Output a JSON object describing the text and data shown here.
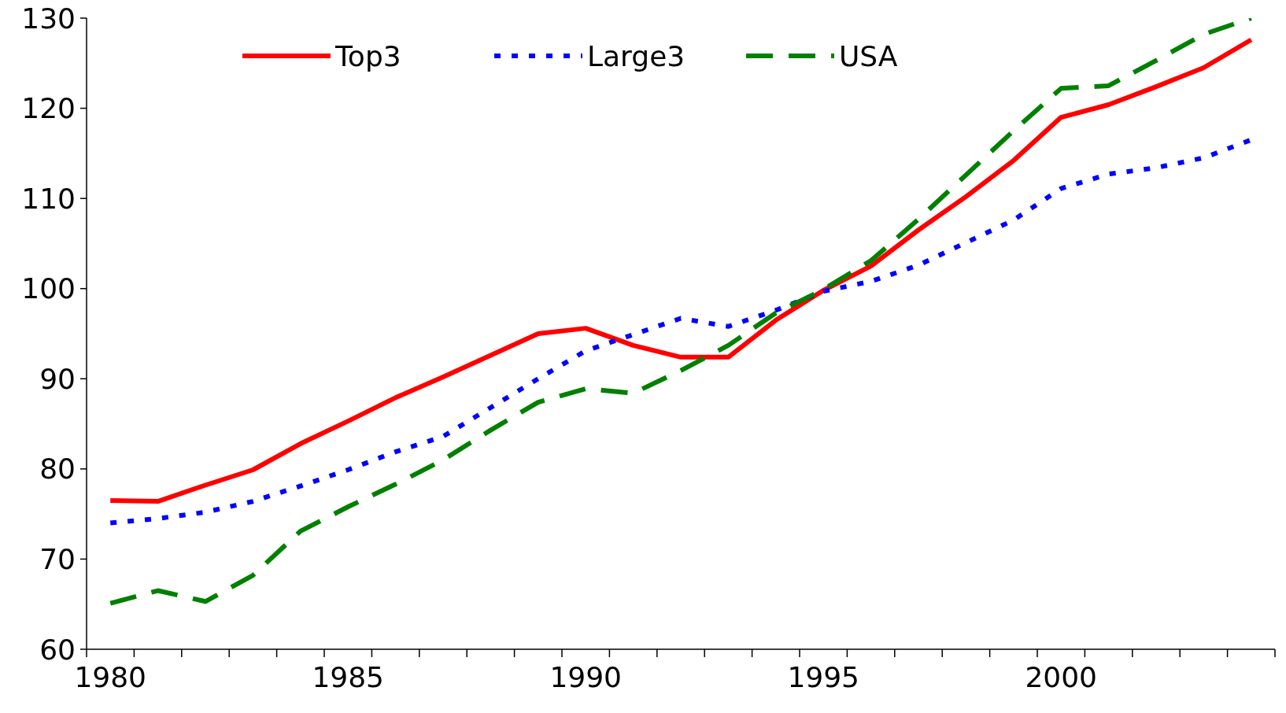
{
  "chart_data": {
    "type": "line",
    "categories": [
      "1980",
      null,
      null,
      null,
      null,
      "1985",
      null,
      null,
      null,
      null,
      "1990",
      null,
      null,
      null,
      null,
      "1995",
      null,
      null,
      null,
      null,
      "2000",
      null,
      null,
      null,
      null
    ],
    "series": [
      {
        "name": "Top3",
        "color": "#ff0000",
        "line_style": "solid",
        "values": [
          76.5,
          76.4,
          78.2,
          79.9,
          82.8,
          85.3,
          87.9,
          90.2,
          92.6,
          95.0,
          95.6,
          93.7,
          92.4,
          92.4,
          96.5,
          99.8,
          102.5,
          106.5,
          110.2,
          114.2,
          119.0,
          120.4,
          122.4,
          124.5,
          127.6
        ]
      },
      {
        "name": "Large3",
        "color": "#0000ff",
        "line_style": "dotted",
        "values": [
          74.0,
          74.5,
          75.2,
          76.4,
          78.1,
          79.9,
          81.9,
          83.6,
          86.8,
          90.0,
          93.1,
          94.9,
          96.7,
          95.8,
          97.6,
          99.7,
          100.8,
          102.6,
          105.1,
          107.6,
          111.1,
          112.7,
          113.4,
          114.5,
          116.5
        ]
      },
      {
        "name": "USA",
        "color": "#008000",
        "line_style": "dashed",
        "values": [
          65.1,
          66.5,
          65.3,
          68.2,
          73.1,
          75.8,
          78.3,
          81.0,
          84.3,
          87.4,
          88.9,
          88.4,
          90.9,
          93.7,
          97.3,
          99.9,
          103.1,
          107.7,
          112.6,
          117.5,
          122.2,
          122.5,
          125.3,
          128.2,
          130
        ]
      }
    ],
    "ylim": [
      60,
      130
    ],
    "yticks": [
      60,
      70,
      80,
      90,
      100,
      110,
      120,
      130
    ],
    "grid": false,
    "legend": "top",
    "marker": "none"
  }
}
